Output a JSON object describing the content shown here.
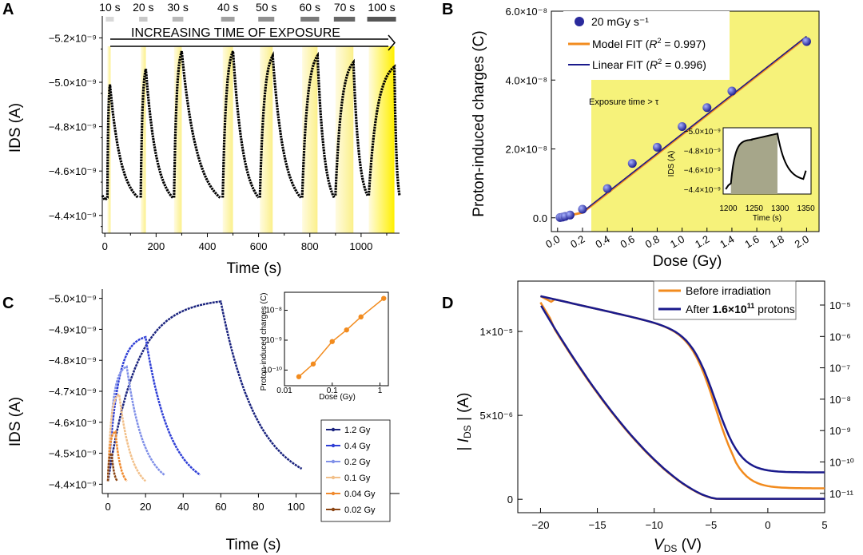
{
  "chart_data": [
    {
      "panel": "A",
      "type": "line",
      "xlabel": "Time (s)",
      "ylabel": "IDS (A)",
      "xlim": [
        -10,
        1150
      ],
      "ylim": [
        -4.32,
        -5.27
      ],
      "x_ticks": [
        "0",
        "200",
        "400",
        "600",
        "800",
        "1000"
      ],
      "y_ticks": [
        "−5.2×10⁻⁹",
        "−5.0×10⁻⁹",
        "−4.8×10⁻⁹",
        "−4.6×10⁻⁹",
        "−4.4×10⁻⁹"
      ],
      "banner": "INCREASING TIME OF EXPOSURE",
      "exposures": [
        {
          "label": "10 s",
          "start": 10,
          "duration": 10,
          "peak": -4.99,
          "end": 130,
          "baseline": -4.48
        },
        {
          "label": "20 s",
          "start": 140,
          "duration": 20,
          "peak": -5.06,
          "end": 265,
          "baseline": -4.48
        },
        {
          "label": "30 s",
          "start": 270,
          "duration": 30,
          "peak": -5.14,
          "end": 450,
          "baseline": -4.48
        },
        {
          "label": "40 s",
          "start": 460,
          "duration": 40,
          "peak": -5.14,
          "end": 600,
          "baseline": -4.48
        },
        {
          "label": "50 s",
          "start": 605,
          "duration": 50,
          "peak": -5.12,
          "end": 765,
          "baseline": -4.48
        },
        {
          "label": "60 s",
          "start": 770,
          "duration": 60,
          "peak": -5.12,
          "end": 895,
          "baseline": -4.48
        },
        {
          "label": "70 s",
          "start": 900,
          "duration": 70,
          "peak": -5.09,
          "end": 1025,
          "baseline": -4.49
        },
        {
          "label": "100 s",
          "start": 1030,
          "duration": 100,
          "peak": -5.07,
          "end": 1150,
          "baseline": -4.49
        }
      ]
    },
    {
      "panel": "B",
      "type": "scatter",
      "xlabel": "Dose (Gy)",
      "ylabel": "Proton-induced charges (C)",
      "xlim": [
        -0.05,
        2.1
      ],
      "ylim": [
        -0.4,
        6.0
      ],
      "x_ticks": [
        "0.0",
        "0.2",
        "0.4",
        "0.6",
        "0.8",
        "1.0",
        "1.2",
        "1.4",
        "1.6",
        "1.8",
        "2.0"
      ],
      "y_ticks": [
        "0.0",
        "2.0×10⁻⁸",
        "4.0×10⁻⁸",
        "6.0×10⁻⁸"
      ],
      "annotation": "Exposure time > τ",
      "series": [
        {
          "name": "20 mGy s⁻¹",
          "x": [
            0.02,
            0.04,
            0.06,
            0.1,
            0.2,
            0.4,
            0.6,
            0.8,
            1.0,
            1.2,
            1.4,
            2.0
          ],
          "y": [
            0.01,
            0.02,
            0.04,
            0.08,
            0.25,
            0.85,
            1.58,
            2.05,
            2.65,
            3.2,
            3.68,
            5.12
          ]
        },
        {
          "name": "Model FIT (R² = 0.997)",
          "x": [
            0.0,
            0.2,
            2.0
          ],
          "y": [
            0.0,
            0.15,
            5.25
          ]
        },
        {
          "name": "Linear FIT (R² = 0.996)",
          "x": [
            0.2,
            2.0
          ],
          "y": [
            0.17,
            5.27
          ]
        }
      ],
      "legend": [
        "20 mGy s⁻¹",
        "Model FIT (",
        "R",
        "2",
        " = 0.997)",
        "Linear FIT (",
        " = 0.996)"
      ],
      "inset": {
        "xlabel": "Time (s)",
        "ylabel": "IDS (A)",
        "x_ticks": [
          "1200",
          "1250",
          "1300",
          "1350"
        ],
        "y_ticks": [
          "−5.0×10⁻⁹",
          "−4.8×10⁻⁹",
          "−4.6×10⁻⁹",
          "−4.4×10⁻⁹"
        ]
      }
    },
    {
      "panel": "C",
      "type": "line",
      "xlabel": "Time (s)",
      "ylabel": "IDS (A)",
      "xlim": [
        -3,
        155
      ],
      "ylim": [
        -4.37,
        -5.03
      ],
      "x_ticks": [
        "0",
        "20",
        "40",
        "60",
        "80",
        "100",
        "120",
        "140"
      ],
      "y_ticks": [
        "−5.0×10⁻⁹",
        "−4.9×10⁻⁹",
        "−4.8×10⁻⁹",
        "−4.7×10⁻⁹",
        "−4.6×10⁻⁹",
        "−4.5×10⁻⁹",
        "−4.4×10⁻⁹"
      ],
      "series": [
        {
          "name": "1.2 Gy",
          "color": "#1a237e",
          "peak_time": 60,
          "peak": -4.99,
          "end": 103,
          "end_value": -4.45
        },
        {
          "name": "0.4 Gy",
          "color": "#2f3fd6",
          "peak_time": 20,
          "peak": -4.875,
          "end": 49,
          "end_value": -4.43
        },
        {
          "name": "0.2 Gy",
          "color": "#8090e8",
          "peak_time": 10,
          "peak": -4.78,
          "end": 30,
          "end_value": -4.43
        },
        {
          "name": "0.1 Gy",
          "color": "#f2c08a",
          "peak_time": 6,
          "peak": -4.69,
          "end": 20,
          "end_value": -4.41
        },
        {
          "name": "0.04 Gy",
          "color": "#f08a2e",
          "peak_time": 4,
          "peak": -4.57,
          "end": 10,
          "end_value": -4.41
        },
        {
          "name": "0.02 Gy",
          "color": "#8b4513",
          "peak_time": 2,
          "peak": -4.5,
          "end": 5,
          "end_value": -4.41
        }
      ],
      "inset": {
        "xlabel": "Dose (Gy)",
        "ylabel": "Proton-induced charges (C)",
        "x_ticks": [
          "0.01",
          "0.1",
          "1"
        ],
        "y_ticks": [
          "10⁻⁸",
          "10⁻⁹",
          "10⁻¹⁰"
        ],
        "x": [
          0.02,
          0.04,
          0.1,
          0.2,
          0.4,
          1.2
        ],
        "y": [
          0.06,
          0.16,
          0.9,
          2.2,
          6.0,
          25.0
        ]
      }
    },
    {
      "panel": "D",
      "type": "line",
      "xlabel": "VDS (V)",
      "ylabel": "| IDS | (A)",
      "xlim": [
        -22,
        5
      ],
      "ylim": [
        -0.08,
        1.3
      ],
      "x_ticks": [
        "−20",
        "−15",
        "−10",
        "−5",
        "0",
        "5"
      ],
      "y_ticks": [
        "0",
        "5×10⁻⁶",
        "1×10⁻⁵"
      ],
      "y2_ticks": [
        "10⁻⁵",
        "10⁻⁶",
        "10⁻⁷",
        "10⁻⁸",
        "10⁻⁹",
        "10⁻¹⁰",
        "10⁻¹¹"
      ],
      "series": [
        {
          "name": "Before irradiation",
          "color": "#f28b1e"
        },
        {
          "name": "After 1.6×10¹¹ protons",
          "color": "#1a1a8c"
        }
      ],
      "legend": [
        "Before irradiation",
        "After ",
        "1.6×10",
        "11",
        " protons"
      ]
    }
  ],
  "panels": [
    "A",
    "B",
    "C",
    "D"
  ]
}
